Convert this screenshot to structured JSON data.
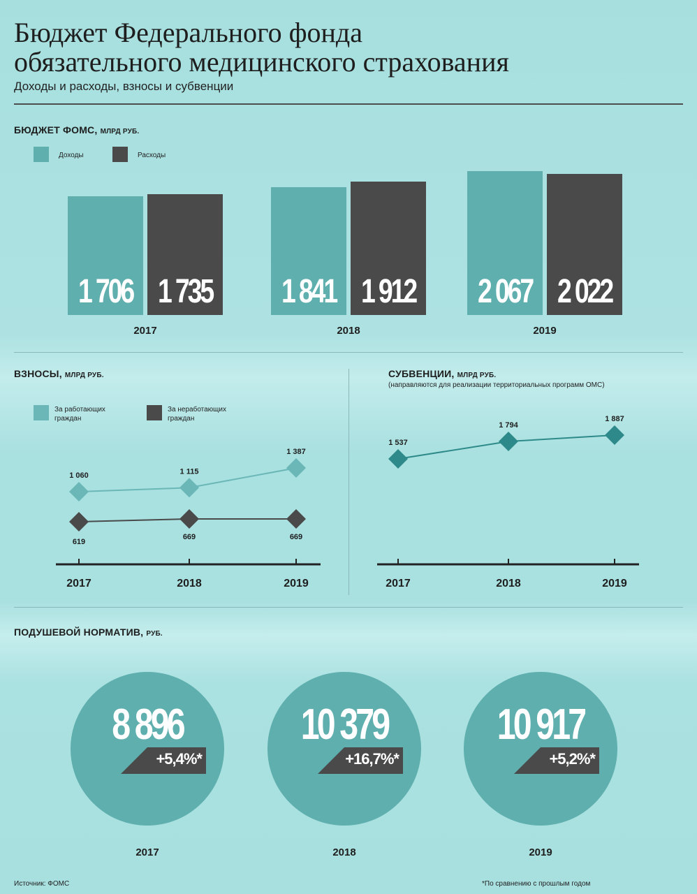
{
  "header": {
    "title_line1": "Бюджет Федерального фонда",
    "title_line2": "обязательного медицинского страхования",
    "subtitle": "Доходы и расходы, взносы и субвенции"
  },
  "colors": {
    "teal": "#5fafaf",
    "dark": "#4a4a4a",
    "teal_light": "#6bb7b7",
    "teal_dark": "#2e8a8a"
  },
  "budget": {
    "title": "БЮДЖЕТ ФОМС,",
    "unit": "МЛРД РУБ.",
    "legend": {
      "income": "Доходы",
      "expense": "Расходы"
    }
  },
  "contrib": {
    "title": "ВЗНОСЫ,",
    "unit": "МЛРД РУБ.",
    "legend": {
      "working": "За работающих граждан",
      "nonworking": "За неработающих граждан"
    }
  },
  "subv": {
    "title": "СУБВЕНЦИИ,",
    "unit": "МЛРД РУБ.",
    "note": "(направляются для реализации  территориальных программ ОМС)"
  },
  "percap": {
    "title": "ПОДУШЕВОЙ НОРМАТИВ,",
    "unit": "РУБ."
  },
  "footer": {
    "source": "Источник:  ФОМС",
    "note": "*По сравнению с прошлым годом"
  },
  "chart_data": [
    {
      "type": "bar",
      "categories": [
        "2017",
        "2018",
        "2019"
      ],
      "series": [
        {
          "name": "Доходы",
          "values": [
            1706,
            1841,
            2067
          ],
          "labels": [
            "1 706",
            "1 841",
            "2 067"
          ]
        },
        {
          "name": "Расходы",
          "values": [
            1735,
            1912,
            2022
          ],
          "labels": [
            "1 735",
            "1 912",
            "2 022"
          ]
        }
      ]
    },
    {
      "type": "line",
      "x": [
        "2017",
        "2018",
        "2019"
      ],
      "series": [
        {
          "name": "За работающих граждан",
          "values": [
            1060,
            1115,
            1387
          ],
          "labels": [
            "1 060",
            "1 115",
            "1 387"
          ]
        },
        {
          "name": "За неработающих граждан",
          "values": [
            619,
            669,
            669
          ],
          "labels": [
            "619",
            "669",
            "669"
          ]
        }
      ]
    },
    {
      "type": "line",
      "x": [
        "2017",
        "2018",
        "2019"
      ],
      "series": [
        {
          "values": [
            1537,
            1794,
            1887
          ],
          "labels": [
            "1 537",
            "1 794",
            "1 887"
          ]
        }
      ]
    },
    {
      "type": "table",
      "categories": [
        "2017",
        "2018",
        "2019"
      ],
      "values": [
        8896,
        10379,
        10917
      ],
      "labels": [
        "8 896",
        "10 379",
        "10 917"
      ],
      "changes": [
        "+5,4%*",
        "+16,7%*",
        "+5,2%*"
      ]
    }
  ]
}
